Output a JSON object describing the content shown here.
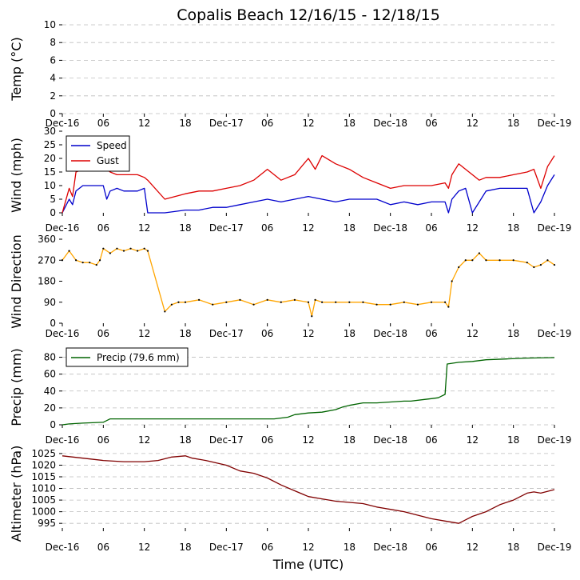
{
  "chart_data": {
    "type": "line",
    "title": "Copalis Beach 12/16/15 - 12/18/15",
    "xlabel": "Time (UTC)",
    "x_ticks": [
      "Dec-16",
      "06",
      "12",
      "18",
      "Dec-17",
      "06",
      "12",
      "18",
      "Dec-18",
      "06",
      "12",
      "18",
      "Dec-19"
    ],
    "x_range_hours": [
      0,
      72
    ],
    "panels": [
      {
        "id": "temp",
        "ylabel": "Temp (°C)",
        "ylim": [
          0,
          10
        ],
        "y_ticks": [
          "0",
          "2",
          "4",
          "6",
          "8",
          "10"
        ],
        "grid": true,
        "series": []
      },
      {
        "id": "wind",
        "ylabel": "Wind (mph)",
        "ylim": [
          0,
          30
        ],
        "y_ticks": [
          "0",
          "5",
          "10",
          "15",
          "20",
          "25",
          "30"
        ],
        "grid": false,
        "legend": [
          "Speed",
          "Gust"
        ],
        "series": [
          {
            "name": "Speed",
            "color": "#0000cc",
            "x": [
              0,
              1,
              1.5,
              2,
              3,
              4,
              5,
              6,
              6.5,
              7,
              8,
              9,
              10,
              11,
              12,
              12.5,
              15,
              18,
              20,
              22,
              24,
              26,
              28,
              30,
              32,
              34,
              36,
              38,
              40,
              42,
              44,
              46,
              48,
              50,
              52,
              54,
              56,
              56.5,
              57,
              58,
              59,
              60,
              61,
              62,
              64,
              66,
              68,
              69,
              70,
              71,
              72
            ],
            "y": [
              0,
              5,
              3,
              8,
              10,
              10,
              10,
              10,
              5,
              8,
              9,
              8,
              8,
              8,
              9,
              0,
              0,
              1,
              1,
              2,
              2,
              3,
              4,
              5,
              4,
              5,
              6,
              5,
              4,
              5,
              5,
              5,
              3,
              4,
              3,
              4,
              4,
              0,
              5,
              8,
              9,
              0,
              4,
              8,
              9,
              9,
              9,
              0,
              4,
              10,
              14
            ]
          },
          {
            "name": "Gust",
            "color": "#dd0000",
            "x": [
              0,
              1,
              1.5,
              2,
              3,
              4,
              5,
              6,
              7,
              8,
              9,
              10,
              11,
              12,
              12.5,
              15,
              18,
              20,
              22,
              24,
              26,
              28,
              30,
              31,
              32,
              34,
              36,
              37,
              38,
              40,
              42,
              44,
              46,
              48,
              50,
              52,
              54,
              56,
              56.5,
              57,
              58,
              59,
              60,
              61,
              62,
              64,
              66,
              68,
              69,
              70,
              71,
              72
            ],
            "y": [
              0,
              9,
              6,
              15,
              16,
              17,
              16,
              17,
              15,
              14,
              14,
              14,
              14,
              13,
              12,
              5,
              7,
              8,
              8,
              9,
              10,
              12,
              16,
              14,
              12,
              14,
              20,
              16,
              21,
              18,
              16,
              13,
              11,
              9,
              10,
              10,
              10,
              11,
              9,
              14,
              18,
              16,
              14,
              12,
              13,
              13,
              14,
              15,
              16,
              9,
              17,
              21
            ]
          }
        ]
      },
      {
        "id": "direction",
        "ylabel": "Wind Direction",
        "ylim": [
          0,
          360
        ],
        "y_ticks": [
          "0",
          "90",
          "180",
          "270",
          "360"
        ],
        "grid": false,
        "series": [
          {
            "name": "Direction",
            "color": "#ffa500",
            "marker_color": "#000000",
            "x": [
              0,
              1,
              2,
              3,
              4,
              5,
              5.5,
              6,
              7,
              8,
              9,
              10,
              11,
              12,
              12.5,
              15,
              16,
              17,
              18,
              20,
              22,
              24,
              26,
              28,
              30,
              32,
              34,
              36,
              36.5,
              37,
              38,
              40,
              42,
              44,
              46,
              48,
              50,
              52,
              54,
              56,
              56.5,
              57,
              58,
              59,
              60,
              61,
              62,
              64,
              66,
              68,
              69,
              70,
              71,
              72
            ],
            "y": [
              270,
              310,
              270,
              260,
              260,
              250,
              270,
              320,
              300,
              320,
              310,
              320,
              310,
              320,
              310,
              50,
              80,
              90,
              90,
              100,
              80,
              90,
              100,
              80,
              100,
              90,
              100,
              90,
              30,
              100,
              90,
              90,
              90,
              90,
              80,
              80,
              90,
              80,
              90,
              90,
              70,
              180,
              240,
              270,
              270,
              300,
              270,
              270,
              270,
              260,
              240,
              250,
              270,
              250
            ]
          }
        ]
      },
      {
        "id": "precip",
        "ylabel": "Precip (mm)",
        "ylim": [
          0,
          90
        ],
        "y_ticks": [
          "0",
          "20",
          "40",
          "60",
          "80"
        ],
        "grid": true,
        "legend": [
          "Precip (79.6 mm)"
        ],
        "series": [
          {
            "name": "Precip (79.6 mm)",
            "color": "#006400",
            "x": [
              0,
              1,
              3,
              6,
              7,
              10,
              15,
              20,
              25,
              30,
              31,
              33,
              34,
              36,
              38,
              40,
              41,
              42,
              44,
              46,
              48,
              50,
              51,
              53,
              54,
              55,
              55.5,
              56,
              56.3,
              58,
              60,
              62,
              65,
              68,
              72
            ],
            "y": [
              0,
              1,
              2,
              3,
              7,
              7,
              7,
              7,
              7,
              7,
              7,
              9,
              12,
              14,
              15,
              18,
              21,
              23,
              26,
              26,
              27,
              28,
              28,
              30,
              31,
              32,
              34,
              36,
              72,
              74,
              75,
              77,
              78,
              79,
              79.6
            ]
          }
        ]
      },
      {
        "id": "altimeter",
        "ylabel": "Altimeter (hPa)",
        "ylim": [
          993,
          1026
        ],
        "y_ticks": [
          "995",
          "1000",
          "1005",
          "1010",
          "1015",
          "1020",
          "1025"
        ],
        "grid": true,
        "series": [
          {
            "name": "Altimeter",
            "color": "#800000",
            "x": [
              0,
              3,
              6,
              9,
              12,
              14,
              16,
              18,
              19,
              21,
              24,
              26,
              28,
              30,
              32,
              34,
              36,
              38,
              40,
              42,
              44,
              46,
              48,
              50,
              52,
              54,
              56,
              58,
              59,
              60,
              62,
              64,
              66,
              68,
              69,
              70,
              72
            ],
            "y": [
              1024,
              1023,
              1022,
              1021.5,
              1021.5,
              1022,
              1023.5,
              1024,
              1023,
              1022,
              1020,
              1017.5,
              1016.5,
              1014.5,
              1011.5,
              1009,
              1006.5,
              1005.5,
              1004.5,
              1004,
              1003.5,
              1002,
              1001,
              1000,
              998.5,
              997,
              996,
              995,
              996.5,
              998,
              1000,
              1003,
              1005,
              1008,
              1008.5,
              1008,
              1009.5
            ]
          }
        ]
      }
    ]
  }
}
